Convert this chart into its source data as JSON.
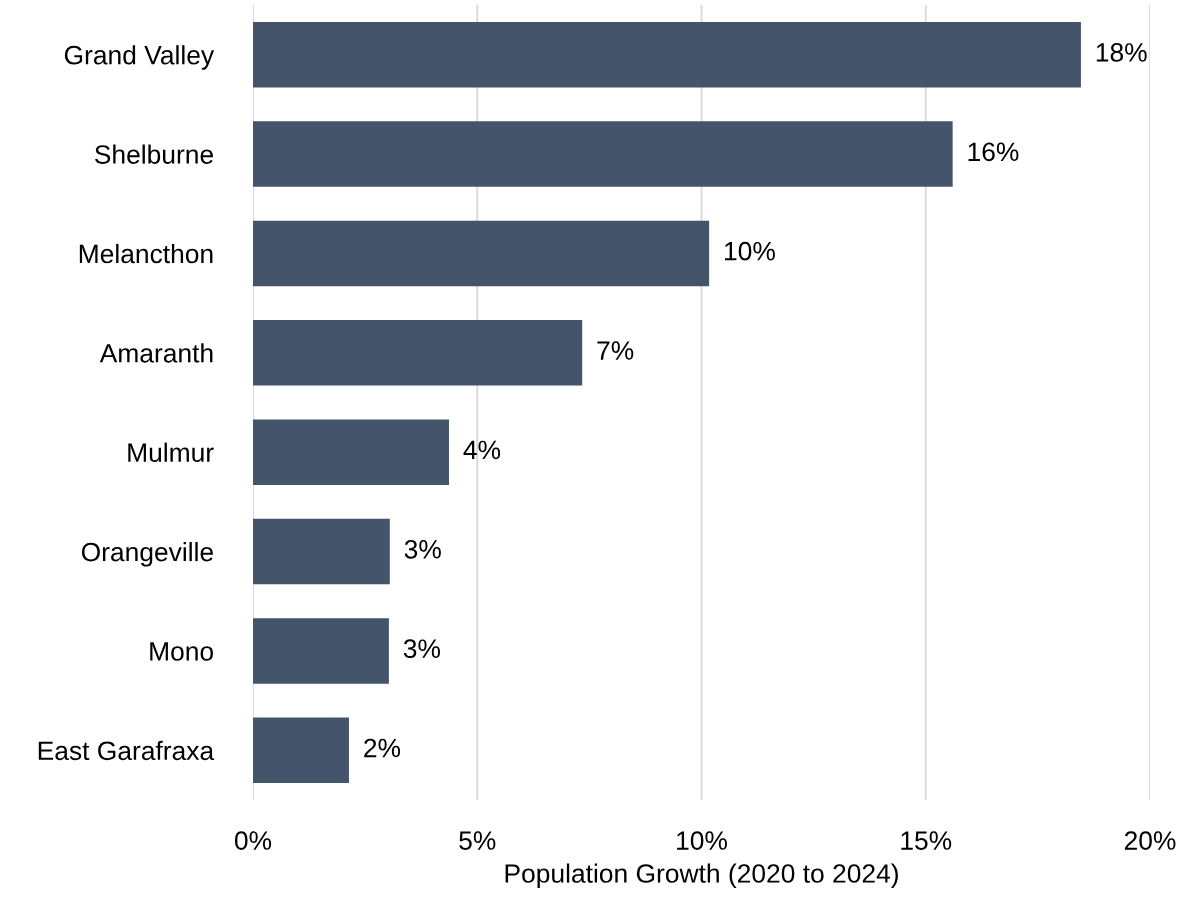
{
  "chart_data": {
    "type": "bar",
    "orientation": "horizontal",
    "xlabel": "Population Growth (2020 to 2024)",
    "categories": [
      "Grand Valley",
      "Shelburne",
      "Melancthon",
      "Amaranth",
      "Mulmur",
      "Orangeville",
      "Mono",
      "East Garafraxa"
    ],
    "values": [
      18.46,
      15.6,
      10.17,
      7.34,
      4.37,
      3.05,
      3.03,
      2.14
    ],
    "value_labels": [
      "18%",
      "16%",
      "10%",
      "7%",
      "4%",
      "3%",
      "3%",
      "2%"
    ],
    "color": "#44546a",
    "xlim": [
      0,
      20
    ],
    "xticks": [
      {
        "value": 0,
        "label": "0%"
      },
      {
        "value": 5,
        "label": "5%"
      },
      {
        "value": 10,
        "label": "10%"
      },
      {
        "value": 15,
        "label": "15%"
      },
      {
        "value": 20,
        "label": "20%"
      }
    ],
    "grid": "x",
    "legend": false
  }
}
